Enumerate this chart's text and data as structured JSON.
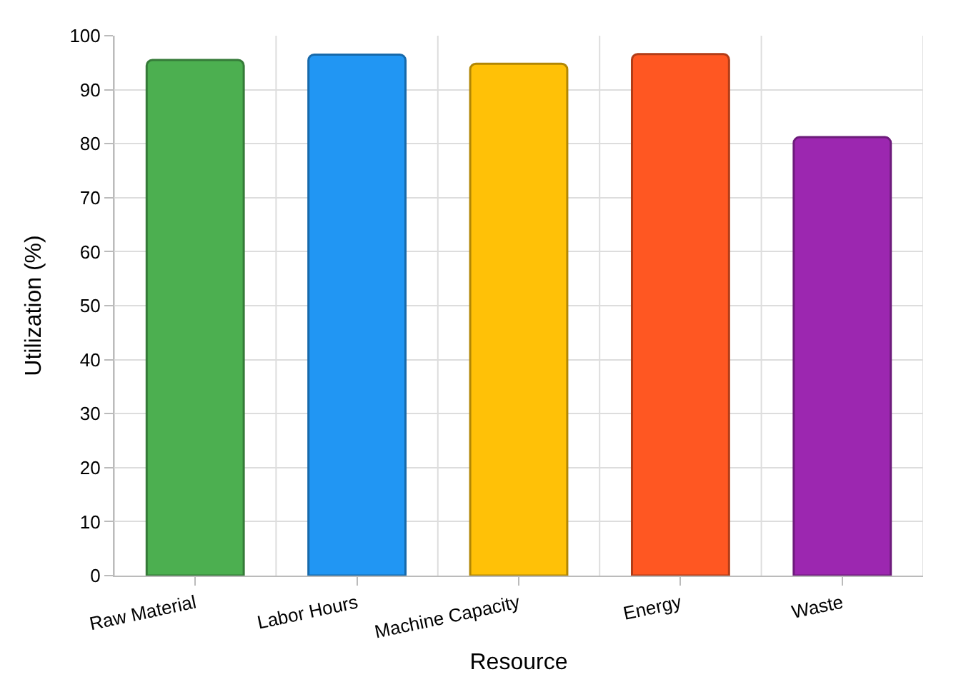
{
  "chart_data": {
    "type": "bar",
    "xlabel": "Resource",
    "ylabel": "Utilization (%)",
    "categories": [
      "Raw Material",
      "Labor Hours",
      "Machine Capacity",
      "Energy",
      "Waste"
    ],
    "values": [
      95.5,
      96.5,
      94.8,
      96.6,
      81.2
    ],
    "colors": [
      "#4caf50",
      "#2196f3",
      "#ffc107",
      "#ff5722",
      "#9c27b0"
    ],
    "ylim": [
      0,
      100
    ],
    "yticks": [
      0,
      10,
      20,
      30,
      40,
      50,
      60,
      70,
      80,
      90,
      100
    ],
    "grid": true
  }
}
